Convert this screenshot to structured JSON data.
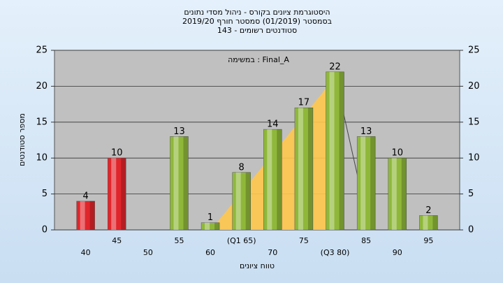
{
  "chart_data": {
    "type": "bar",
    "title": "היסטוגרמת ציונים בקורס - ניהול מסדי נתונים",
    "subtitle": "בסמסטר  (01/2019)  סמסטר חורף 2019/20",
    "subtitle2": "סטודנטים רשומים - 143",
    "annotation": "במשימה : Final_A",
    "x_label": "טווח ציונים",
    "y_label": "מספר סטודנטים",
    "categories": [
      "40",
      "45",
      "50",
      "55",
      "60",
      "(Q1 65)",
      "70",
      "75",
      "(Q3 80)",
      "85",
      "90",
      "95"
    ],
    "values": [
      4,
      10,
      null,
      13,
      1,
      8,
      14,
      17,
      22,
      13,
      10,
      2
    ],
    "colors": [
      "#e0262b",
      "#e0262b",
      "#8fb83a",
      "#8fb83a",
      "#8fb83a",
      "#8fb83a",
      "#8fb83a",
      "#8fb83a",
      "#8fb83a",
      "#8fb83a",
      "#8fb83a",
      "#8fb83a"
    ],
    "ylim": [
      0,
      25
    ],
    "yticks": [
      0,
      5,
      10,
      15,
      20,
      25
    ],
    "grid": true
  }
}
